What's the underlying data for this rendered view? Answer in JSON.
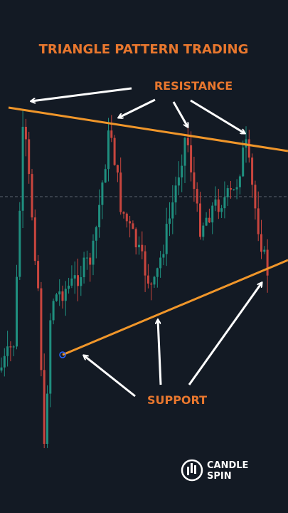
{
  "header": {
    "title": "TRIANGLE PATTERN TRADING"
  },
  "annotations": {
    "resistance": "RESISTANCE",
    "support": "SUPPORT"
  },
  "logo": {
    "line1": "CANDLE",
    "line2": "SPIN"
  }
}
